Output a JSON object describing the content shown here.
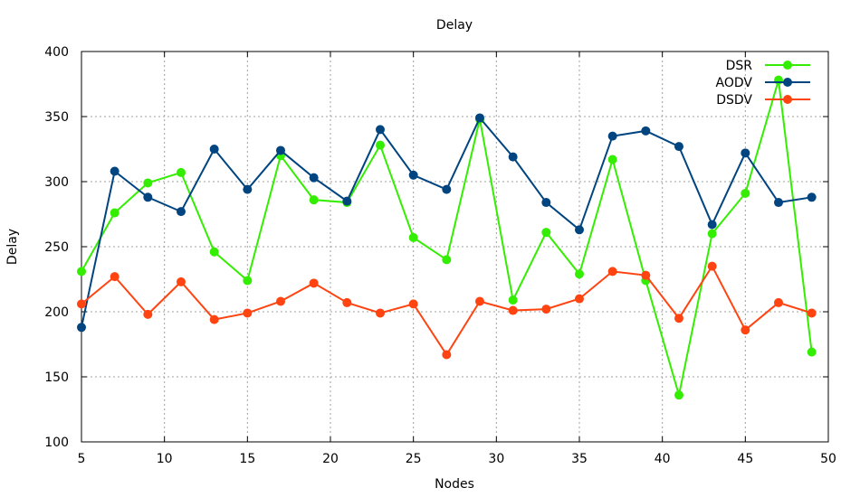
{
  "chart_data": {
    "type": "line",
    "title": "Delay",
    "xlabel": "Nodes",
    "ylabel": "Delay",
    "xlim": [
      5,
      50
    ],
    "ylim": [
      100,
      400
    ],
    "xticks": [
      5,
      10,
      15,
      20,
      25,
      30,
      35,
      40,
      45,
      50
    ],
    "yticks": [
      100,
      150,
      200,
      250,
      300,
      350,
      400
    ],
    "grid": true,
    "legend_position": "top-right",
    "x": [
      5,
      7,
      9,
      11,
      13,
      15,
      17,
      19,
      21,
      23,
      25,
      27,
      29,
      31,
      33,
      35,
      37,
      39,
      41,
      43,
      45,
      47,
      49
    ],
    "series": [
      {
        "name": "DSR",
        "color": "#33ee00",
        "values": [
          231,
          276,
          299,
          307,
          246,
          224,
          320,
          286,
          284,
          328,
          257,
          240,
          348,
          209,
          261,
          229,
          317,
          224,
          136,
          260,
          291,
          378,
          169
        ]
      },
      {
        "name": "AODV",
        "color": "#004480",
        "values": [
          188,
          308,
          288,
          277,
          325,
          294,
          324,
          303,
          285,
          340,
          305,
          294,
          349,
          319,
          284,
          263,
          335,
          339,
          327,
          267,
          322,
          284,
          288
        ]
      },
      {
        "name": "DSDV",
        "color": "#ff4411",
        "values": [
          206,
          227,
          198,
          223,
          194,
          199,
          208,
          222,
          207,
          199,
          206,
          167,
          208,
          201,
          202,
          210,
          231,
          228,
          195,
          235,
          186,
          207,
          199
        ]
      }
    ]
  }
}
